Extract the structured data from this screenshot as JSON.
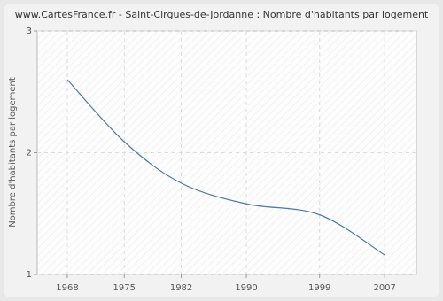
{
  "chart_data": {
    "type": "line",
    "title": "www.CartesFrance.fr - Saint-Cirgues-de-Jordanne : Nombre d'habitants par logement",
    "y_label": "Nombre d'habitants par logement",
    "x": [
      1968,
      1975,
      1982,
      1990,
      1999,
      2007
    ],
    "series": [
      {
        "name": "Nombre d'habitants par logement",
        "color": "#4a78a8",
        "values": [
          2.6,
          2.09,
          1.75,
          1.58,
          1.49,
          1.16
        ]
      }
    ],
    "xlim": [
      1964.3,
      2010.9
    ],
    "xticks": [
      1968,
      1975,
      1982,
      1990,
      1999,
      2007
    ],
    "ylim": [
      1,
      3
    ],
    "yticks": [
      1,
      2,
      3
    ],
    "grid": true
  }
}
